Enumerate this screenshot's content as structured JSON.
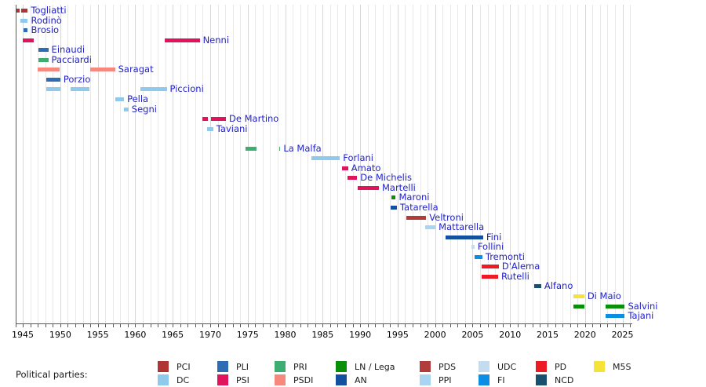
{
  "legend": {
    "heading": "Political parties:",
    "columns": [
      [
        {
          "key": "PCI",
          "label": "PCI"
        },
        {
          "key": "DC",
          "label": "DC"
        }
      ],
      [
        {
          "key": "PLI",
          "label": "PLI"
        },
        {
          "key": "PSI",
          "label": "PSI"
        }
      ],
      [
        {
          "key": "PRI",
          "label": "PRI"
        },
        {
          "key": "PSDI",
          "label": "PSDI"
        }
      ],
      [
        {
          "key": "LN",
          "label": "LN / Lega"
        },
        {
          "key": "AN",
          "label": "AN"
        }
      ],
      [
        {
          "key": "PDS",
          "label": "PDS"
        },
        {
          "key": "PPI",
          "label": "PPI"
        }
      ],
      [
        {
          "key": "UDC",
          "label": "UDC"
        },
        {
          "key": "FI",
          "label": "FI"
        }
      ],
      [
        {
          "key": "PD",
          "label": "PD"
        },
        {
          "key": "NCD",
          "label": "NCD"
        }
      ],
      [
        {
          "key": "M5S",
          "label": "M5S"
        }
      ]
    ]
  },
  "parties": {
    "PCI": "#b03434",
    "DC": "#8fcaec",
    "PLI": "#2e6db4",
    "PSI": "#e0145c",
    "PRI": "#3dae72",
    "PSDI": "#f5897e",
    "LN": "#089008",
    "AN": "#1450a0",
    "PDS": "#b23b3b",
    "PPI": "#a9d5f2",
    "UDC": "#c5dcee",
    "FI": "#0e8de4",
    "PD": "#ed1b24",
    "NCD": "#19506e",
    "M5S": "#f6e339"
  },
  "axis": {
    "start": 1944,
    "end": 2026.3,
    "grid_interval_years": 1,
    "tick_labels": [
      "1945",
      "1950",
      "1955",
      "1960",
      "1965",
      "1970",
      "1975",
      "1980",
      "1985",
      "1990",
      "1995",
      "2000",
      "2005",
      "2010",
      "2015",
      "2020",
      "2025"
    ]
  },
  "label_color": "#2222cc",
  "chart_data": {
    "type": "timeline",
    "x_axis": {
      "start": 1944,
      "end": 2026.3,
      "labeled_tick_interval": 5,
      "grid": "yearly vertical gridlines"
    },
    "legend_position": "bottom",
    "people": [
      {
        "name": "Togliatti",
        "party": "PCI",
        "row": 0,
        "terms": [
          [
            1944.2,
            1944.62
          ],
          [
            1944.8,
            1945.67
          ]
        ]
      },
      {
        "name": "Rodinò",
        "party": "DC",
        "row": 1,
        "terms": [
          [
            1944.7,
            1945.67
          ]
        ]
      },
      {
        "name": "Brosio",
        "party": "PLI",
        "row": 2,
        "terms": [
          [
            1945.1,
            1945.67
          ]
        ]
      },
      {
        "name": "Nenni",
        "party": "PSI",
        "row": 3,
        "terms": [
          [
            1945.0,
            1946.5
          ],
          [
            1963.9,
            1968.6
          ]
        ]
      },
      {
        "name": "Einaudi",
        "party": "PLI",
        "row": 4,
        "terms": [
          [
            1947.1,
            1948.4
          ]
        ]
      },
      {
        "name": "Pacciardi",
        "party": "PRI",
        "row": 5,
        "terms": [
          [
            1947.1,
            1948.4
          ]
        ]
      },
      {
        "name": "Saragat",
        "party": "PSDI",
        "row": 6,
        "terms": [
          [
            1947.0,
            1949.9
          ],
          [
            1954.0,
            1957.3
          ]
        ]
      },
      {
        "name": "Porzio",
        "party": "PLI",
        "row": 7,
        "terms": [
          [
            1948.1,
            1950.0
          ]
        ]
      },
      {
        "name": "Piccioni",
        "party": "DC",
        "row": 8,
        "terms": [
          [
            1948.1,
            1950.0
          ],
          [
            1951.4,
            1953.9
          ],
          [
            1960.7,
            1964.2
          ]
        ]
      },
      {
        "name": "Pella",
        "party": "DC",
        "row": 9,
        "terms": [
          [
            1957.3,
            1958.5
          ]
        ]
      },
      {
        "name": "Segni",
        "party": "DC",
        "row": 10,
        "terms": [
          [
            1958.5,
            1959.1
          ]
        ]
      },
      {
        "name": "De Martino",
        "party": "PSI",
        "row": 11,
        "terms": [
          [
            1969.0,
            1969.7
          ],
          [
            1970.1,
            1972.1
          ]
        ]
      },
      {
        "name": "Taviani",
        "party": "DC",
        "row": 12,
        "terms": [
          [
            1969.6,
            1970.4
          ]
        ]
      },
      {
        "name": "La Malfa",
        "party": "PRI",
        "row": 14,
        "terms": [
          [
            1974.7,
            1976.2
          ],
          [
            1979.2,
            1979.35
          ]
        ]
      },
      {
        "name": "Forlani",
        "party": "DC",
        "row": 15,
        "terms": [
          [
            1983.5,
            1987.3
          ]
        ]
      },
      {
        "name": "Amato",
        "party": "PSI",
        "row": 16,
        "terms": [
          [
            1987.6,
            1988.4
          ]
        ]
      },
      {
        "name": "De Michelis",
        "party": "PSI",
        "row": 17,
        "terms": [
          [
            1988.3,
            1989.6
          ]
        ]
      },
      {
        "name": "Martelli",
        "party": "PSI",
        "row": 18,
        "terms": [
          [
            1989.7,
            1992.5
          ]
        ]
      },
      {
        "name": "Maroni",
        "party": "LN",
        "row": 19,
        "terms": [
          [
            1994.2,
            1994.75
          ]
        ]
      },
      {
        "name": "Tatarella",
        "party": "AN",
        "row": 20,
        "terms": [
          [
            1994.1,
            1994.9
          ]
        ]
      },
      {
        "name": "Veltroni",
        "party": "PDS",
        "row": 21,
        "terms": [
          [
            1996.2,
            1998.8
          ]
        ]
      },
      {
        "name": "Mattarella",
        "party": "PPI",
        "row": 22,
        "terms": [
          [
            1998.7,
            2000.05
          ]
        ]
      },
      {
        "name": "Fini",
        "party": "AN",
        "row": 23,
        "terms": [
          [
            2001.35,
            2006.4
          ]
        ]
      },
      {
        "name": "Follini",
        "party": "UDC",
        "row": 24,
        "terms": [
          [
            2004.9,
            2005.25
          ]
        ]
      },
      {
        "name": "Tremonti",
        "party": "FI",
        "row": 25,
        "terms": [
          [
            2005.25,
            2006.3
          ]
        ]
      },
      {
        "name": "D'Alema",
        "party": "PD",
        "row": 26,
        "terms": [
          [
            2006.25,
            2008.5
          ]
        ]
      },
      {
        "name": "Rutelli",
        "party": "PD",
        "row": 27,
        "terms": [
          [
            2006.25,
            2008.4
          ]
        ]
      },
      {
        "name": "Alfano",
        "party": "NCD",
        "row": 28,
        "terms": [
          [
            2013.2,
            2014.15
          ]
        ]
      },
      {
        "name": "Di Maio",
        "party": "M5S",
        "row": 29,
        "terms": [
          [
            2018.5,
            2019.9
          ]
        ]
      },
      {
        "name": "Salvini",
        "party": "LN",
        "row": 30,
        "terms": [
          [
            2018.5,
            2019.9
          ],
          [
            2022.7,
            2025.3
          ]
        ]
      },
      {
        "name": "Tajani",
        "party": "FI",
        "row": 31,
        "terms": [
          [
            2022.7,
            2025.3
          ]
        ]
      }
    ]
  }
}
